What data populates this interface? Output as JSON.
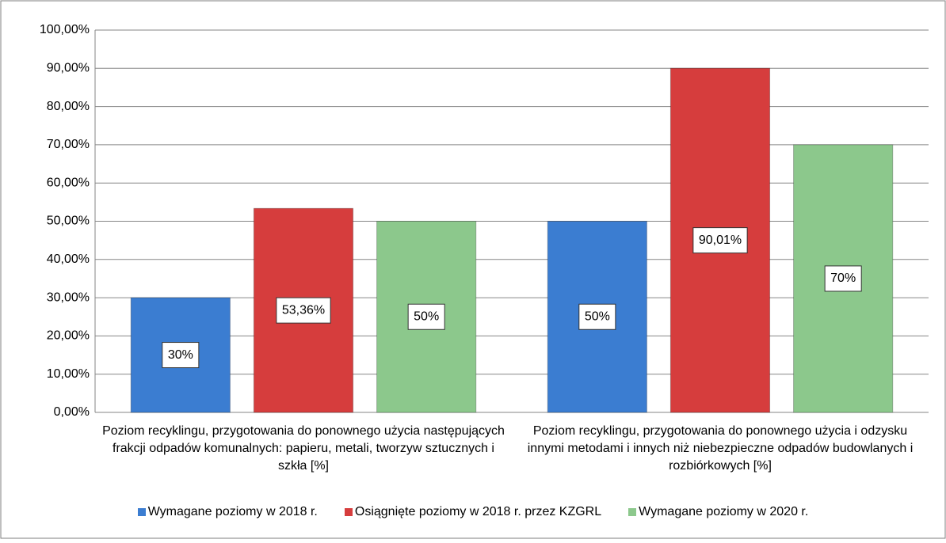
{
  "chart_data": {
    "type": "bar",
    "categories": [
      "Poziom recyklingu, przygotowania do ponownego użycia następujących frakcji odpadów komunalnych: papieru, metali, tworzyw sztucznych i szkła [%]",
      "Poziom recyklingu, przygotowania do ponownego użycia i odzysku innymi metodami i innych niż niebezpieczne odpadów budowlanych i rozbiórkowych [%]"
    ],
    "series": [
      {
        "name": "Wymagane poziomy w 2018 r.",
        "color": "#3b7dd1",
        "values": [
          30,
          50
        ],
        "value_labels": [
          "30%",
          "50%"
        ]
      },
      {
        "name": "Osiągnięte poziomy w 2018 r. przez KZGRL",
        "color": "#d63d3d",
        "values": [
          53.36,
          90.01
        ],
        "value_labels": [
          "53,36%",
          "90,01%"
        ]
      },
      {
        "name": "Wymagane poziomy w 2020 r.",
        "color": "#8cc88c",
        "values": [
          50,
          70
        ],
        "value_labels": [
          "50%",
          "70%"
        ]
      }
    ],
    "ylim": [
      0,
      100
    ],
    "yticks": [
      {
        "value": 0,
        "label": "0,00%"
      },
      {
        "value": 10,
        "label": "10,00%"
      },
      {
        "value": 20,
        "label": "20,00%"
      },
      {
        "value": 30,
        "label": "30,00%"
      },
      {
        "value": 40,
        "label": "40,00%"
      },
      {
        "value": 50,
        "label": "50,00%"
      },
      {
        "value": 60,
        "label": "60,00%"
      },
      {
        "value": 70,
        "label": "70,00%"
      },
      {
        "value": 80,
        "label": "80,00%"
      },
      {
        "value": 90,
        "label": "90,00%"
      },
      {
        "value": 100,
        "label": "100,00%"
      }
    ],
    "grid": true,
    "legend": "bottom"
  }
}
